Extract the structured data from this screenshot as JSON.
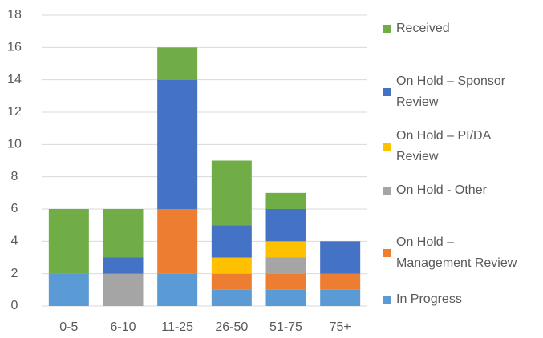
{
  "chart_data": {
    "type": "stacked_bar",
    "categories": [
      "0-5",
      "6-10",
      "11-25",
      "26-50",
      "51-75",
      "75+"
    ],
    "series": [
      {
        "name": "In Progress",
        "color": "#5b9bd5",
        "values": [
          2,
          0,
          2,
          1,
          1,
          1
        ]
      },
      {
        "name": "On Hold – Management Review",
        "color": "#ed7d31",
        "values": [
          0,
          0,
          4,
          1,
          1,
          1
        ]
      },
      {
        "name": "On Hold - Other",
        "color": "#a5a5a5",
        "values": [
          0,
          2,
          0,
          0,
          1,
          0
        ]
      },
      {
        "name": "On Hold – PI/DA Review",
        "color": "#ffc000",
        "values": [
          0,
          0,
          0,
          1,
          1,
          0
        ]
      },
      {
        "name": "On Hold – Sponsor Review",
        "color": "#4472c4",
        "values": [
          0,
          1,
          8,
          2,
          2,
          2
        ]
      },
      {
        "name": "Received",
        "color": "#70ad47",
        "values": [
          4,
          3,
          2,
          4,
          1,
          0
        ]
      }
    ],
    "ylim": [
      0,
      18
    ],
    "yticks": [
      0,
      2,
      4,
      6,
      8,
      10,
      12,
      14,
      16,
      18
    ],
    "grid": true,
    "legend": "right"
  }
}
